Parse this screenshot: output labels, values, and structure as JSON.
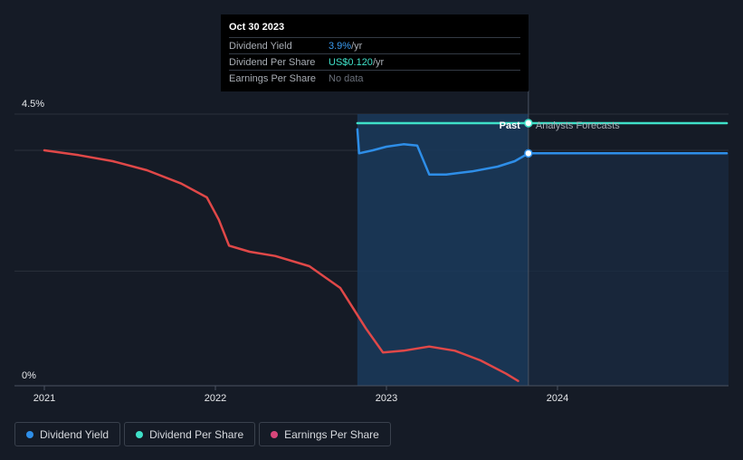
{
  "tooltip": {
    "date": "Oct 30 2023",
    "rows": [
      {
        "label": "Dividend Yield",
        "value": "3.9%",
        "unit": " /yr"
      },
      {
        "label": "Dividend Per Share",
        "value": "US$0.120",
        "unit": " /yr"
      },
      {
        "label": "Earnings Per Share",
        "value": "No data",
        "unit": ""
      }
    ]
  },
  "regions": {
    "past": "Past",
    "forecast": "Analysts Forecasts"
  },
  "legend": [
    {
      "label": "Dividend Yield",
      "color": "#2e8ee8"
    },
    {
      "label": "Dividend Per Share",
      "color": "#3fe0c8"
    },
    {
      "label": "Earnings Per Share",
      "color": "#d8467a"
    }
  ],
  "chart_data": {
    "type": "line",
    "title": "",
    "xlabel": "",
    "ylabel": "",
    "x_ticks": [
      "2021",
      "2022",
      "2023",
      "2024"
    ],
    "y_ticks": [
      "4.5%",
      "0%"
    ],
    "ylim": [
      0,
      4.5
    ],
    "xlim": [
      2020.98,
      2024.99
    ],
    "past_range": [
      2022.83,
      2023.83
    ],
    "series": [
      {
        "name": "Dividend Yield",
        "color": "#2e8ee8",
        "points": [
          [
            2022.83,
            4.25
          ],
          [
            2022.84,
            3.85
          ],
          [
            2022.92,
            3.9
          ],
          [
            2023.0,
            3.96
          ],
          [
            2023.1,
            4.0
          ],
          [
            2023.18,
            3.98
          ],
          [
            2023.25,
            3.5
          ],
          [
            2023.35,
            3.5
          ],
          [
            2023.5,
            3.55
          ],
          [
            2023.65,
            3.63
          ],
          [
            2023.75,
            3.72
          ],
          [
            2023.83,
            3.85
          ],
          [
            2024.99,
            3.85
          ]
        ]
      },
      {
        "name": "Dividend Per Share",
        "color": "#3fe0c8",
        "points": [
          [
            2022.83,
            4.35
          ],
          [
            2024.99,
            4.35
          ]
        ]
      },
      {
        "name": "Earnings Per Share",
        "color": "#e04848",
        "points": [
          [
            2021.0,
            3.9
          ],
          [
            2021.2,
            3.82
          ],
          [
            2021.4,
            3.72
          ],
          [
            2021.6,
            3.57
          ],
          [
            2021.8,
            3.35
          ],
          [
            2021.95,
            3.12
          ],
          [
            2022.02,
            2.75
          ],
          [
            2022.08,
            2.32
          ],
          [
            2022.2,
            2.22
          ],
          [
            2022.35,
            2.15
          ],
          [
            2022.55,
            1.98
          ],
          [
            2022.73,
            1.62
          ],
          [
            2022.88,
            0.95
          ],
          [
            2022.98,
            0.55
          ],
          [
            2023.1,
            0.58
          ],
          [
            2023.25,
            0.65
          ],
          [
            2023.4,
            0.58
          ],
          [
            2023.55,
            0.42
          ],
          [
            2023.7,
            0.2
          ],
          [
            2023.77,
            0.08
          ]
        ]
      }
    ]
  }
}
